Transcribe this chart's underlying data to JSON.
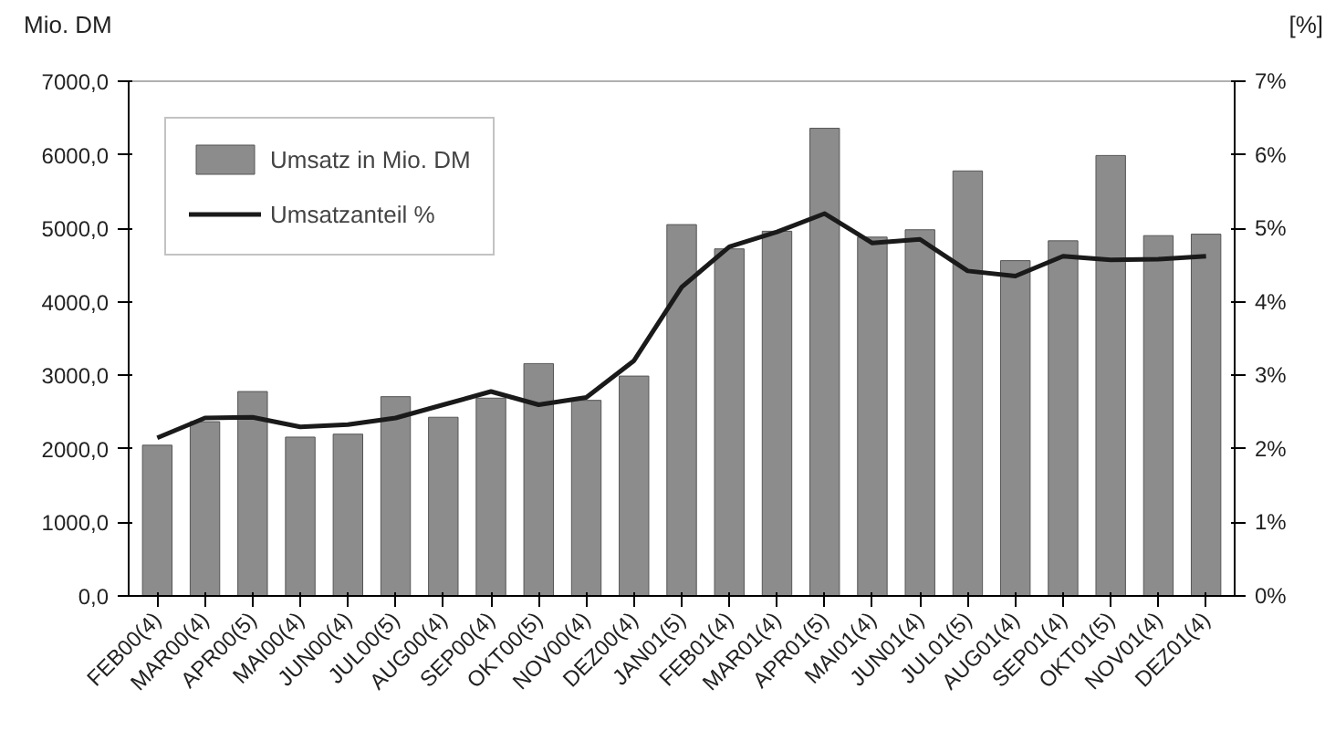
{
  "chart_data": {
    "type": "bar",
    "ylabel": "Mio. DM",
    "y2label": "[%]",
    "categories": [
      "FEB00(4)",
      "MAR00(4)",
      "APR00(5)",
      "MAI00(4)",
      "JUN00(4)",
      "JUL00(5)",
      "AUG00(4)",
      "SEP00(4)",
      "OKT00(5)",
      "NOV00(4)",
      "DEZ00(4)",
      "JAN01(5)",
      "FEB01(4)",
      "MAR01(4)",
      "APR01(5)",
      "MAI01(4)",
      "JUN01(4)",
      "JUL01(5)",
      "AUG01(4)",
      "SEP01(4)",
      "OKT01(5)",
      "NOV01(4)",
      "DEZ01(4)"
    ],
    "series": [
      {
        "name": "Umsatz in Mio. DM",
        "color": "#8c8c8c",
        "values": [
          2050,
          2370,
          2780,
          2160,
          2200,
          2710,
          2430,
          2690,
          3160,
          2660,
          2990,
          5050,
          4720,
          4960,
          6360,
          4880,
          4980,
          5780,
          4560,
          4830,
          5990,
          4900,
          4920
        ]
      },
      {
        "name": "Umsatzanteil %",
        "type": "line",
        "axis": "y2",
        "color": "#1a1a1a",
        "values": [
          2.15,
          2.42,
          2.43,
          2.3,
          2.33,
          2.42,
          2.6,
          2.78,
          2.6,
          2.7,
          3.2,
          4.2,
          4.75,
          4.95,
          5.2,
          4.8,
          4.85,
          4.42,
          4.35,
          4.62,
          4.57,
          4.58,
          4.62
        ]
      }
    ],
    "ylim": [
      0,
      7000
    ],
    "yticks": [
      {
        "value": 0,
        "label": "0,0"
      },
      {
        "value": 1000,
        "label": "1000,0"
      },
      {
        "value": 2000,
        "label": "2000,0"
      },
      {
        "value": 3000,
        "label": "3000,0"
      },
      {
        "value": 4000,
        "label": "4000,0"
      },
      {
        "value": 5000,
        "label": "5000,0"
      },
      {
        "value": 6000,
        "label": "6000,0"
      },
      {
        "value": 7000,
        "label": "7000,0"
      }
    ],
    "y2lim": [
      0,
      7
    ],
    "y2ticks": [
      {
        "value": 0,
        "label": "0%"
      },
      {
        "value": 1,
        "label": "1%"
      },
      {
        "value": 2,
        "label": "2%"
      },
      {
        "value": 3,
        "label": "3%"
      },
      {
        "value": 4,
        "label": "4%"
      },
      {
        "value": 5,
        "label": "5%"
      },
      {
        "value": 6,
        "label": "6%"
      },
      {
        "value": 7,
        "label": "7%"
      }
    ],
    "legend": "top left"
  }
}
